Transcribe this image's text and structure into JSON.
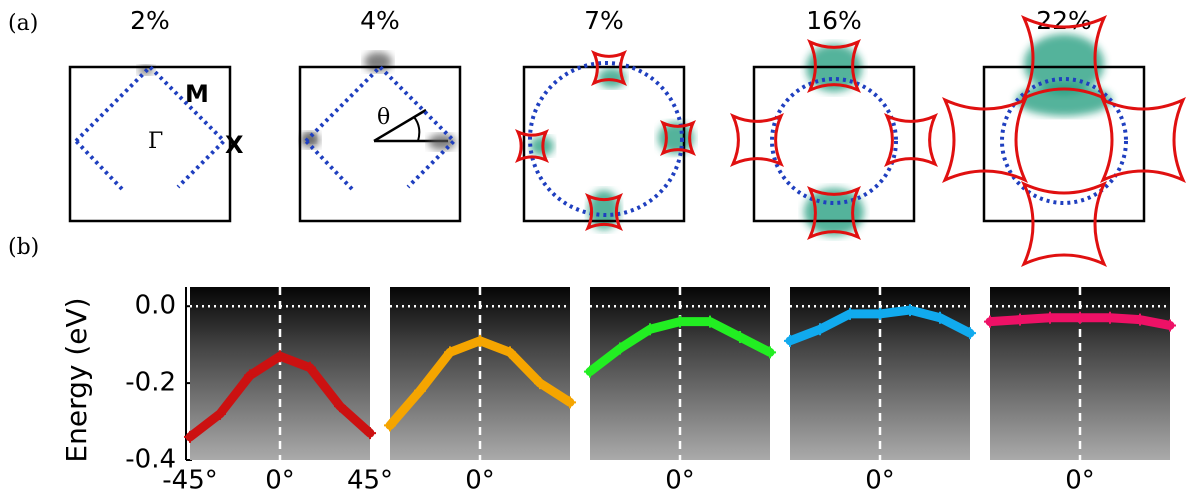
{
  "panel_a": {
    "label": "(a)",
    "panels": [
      {
        "doping": "2%"
      },
      {
        "doping": "4%"
      },
      {
        "doping": "7%"
      },
      {
        "doping": "16%"
      },
      {
        "doping": "22%"
      }
    ],
    "symbols": {
      "gamma": "Γ",
      "m": "M",
      "x": "X",
      "theta": "θ"
    }
  },
  "panel_b": {
    "label": "(b)",
    "type": "line",
    "ylabel": "Energy (eV)",
    "ylim": [
      -0.4,
      0.05
    ],
    "yticks": [
      {
        "value": 0,
        "label": "0.0"
      },
      {
        "value": -0.2,
        "label": "-0.2"
      },
      {
        "value": -0.4,
        "label": "-0.4"
      }
    ],
    "xlim": [
      -45,
      45
    ],
    "xticks": [
      {
        "value": -45,
        "label": "-45°"
      },
      {
        "value": 0,
        "label": "0°"
      },
      {
        "value": 45,
        "label": "45°"
      }
    ],
    "x": [
      -45,
      -30,
      -15,
      0,
      15,
      30,
      45
    ],
    "series": [
      {
        "color": "#cc1111",
        "values": [
          -0.34,
          -0.28,
          -0.18,
          -0.13,
          -0.16,
          -0.26,
          -0.33
        ]
      },
      {
        "color": "#f5a500",
        "values": [
          -0.31,
          -0.22,
          -0.12,
          -0.09,
          -0.12,
          -0.2,
          -0.25
        ]
      },
      {
        "color": "#22ee22",
        "values": [
          -0.17,
          -0.11,
          -0.06,
          -0.04,
          -0.04,
          -0.08,
          -0.12
        ]
      },
      {
        "color": "#11aaee",
        "values": [
          -0.09,
          -0.06,
          -0.02,
          -0.02,
          -0.01,
          -0.03,
          -0.07
        ]
      },
      {
        "color": "#ee1166",
        "values": [
          -0.04,
          -0.035,
          -0.03,
          -0.03,
          -0.03,
          -0.035,
          -0.05
        ]
      }
    ]
  }
}
